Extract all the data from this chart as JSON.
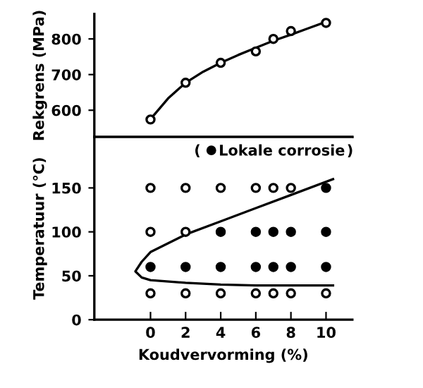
{
  "chart_data": [
    {
      "type": "scatter",
      "ylabel": "Rekgrens (MPa)",
      "xlim": [
        -3.2,
        11.5
      ],
      "ylim": [
        525,
        870
      ],
      "yticks": [
        600,
        700,
        800
      ],
      "tick_labels": "y",
      "series": [
        {
          "marker": "circle",
          "color": "#ffffff",
          "x": [
            0,
            2,
            4,
            6,
            7,
            8,
            10
          ],
          "values": [
            574,
            677,
            733,
            765,
            800,
            822,
            845
          ]
        },
        {
          "type": "line",
          "marker": "none",
          "color": "#000000",
          "x": [
            0,
            1,
            2,
            3,
            4,
            5,
            6,
            7,
            8,
            9,
            10
          ],
          "values": [
            575,
            633,
            677,
            708,
            733,
            755,
            775,
            795,
            812,
            830,
            848
          ]
        }
      ]
    },
    {
      "type": "scatter",
      "xlabel": "Koudvervorming (%)",
      "ylabel": "Temperatuur (°C)",
      "xlim": [
        -3.2,
        11.5
      ],
      "xticks": [
        0,
        2,
        4,
        6,
        8,
        10
      ],
      "ylim": [
        0,
        208
      ],
      "yticks": [
        0,
        50,
        100,
        150
      ],
      "legend": "top right",
      "annotations": [
        "(",
        ")"
      ],
      "series": [
        {
          "marker": "circle",
          "color": "#ffffff",
          "x": [
            0,
            0,
            0,
            2,
            2,
            2,
            4,
            4,
            6,
            6,
            7,
            7,
            8,
            8,
            10
          ],
          "values": [
            30,
            100,
            150,
            30,
            100,
            150,
            30,
            150,
            30,
            150,
            30,
            150,
            30,
            150,
            30
          ]
        },
        {
          "marker": "circle",
          "name": "Lokale corrosie",
          "color": "#000000",
          "x": [
            0,
            2,
            4,
            4,
            6,
            6,
            7,
            7,
            8,
            8,
            10,
            10,
            10
          ],
          "values": [
            60,
            60,
            60,
            100,
            60,
            100,
            60,
            100,
            60,
            100,
            60,
            100,
            150
          ]
        },
        {
          "type": "line",
          "marker": "none",
          "color": "#000000",
          "x": [
            10.4,
            8,
            6,
            4,
            2,
            0,
            -0.5,
            -0.86,
            -0.5,
            0,
            2,
            4,
            6,
            10.4
          ],
          "values": [
            160,
            142,
            127,
            112,
            97,
            77,
            66,
            55,
            48,
            45,
            42,
            40,
            39,
            39
          ]
        }
      ]
    }
  ]
}
